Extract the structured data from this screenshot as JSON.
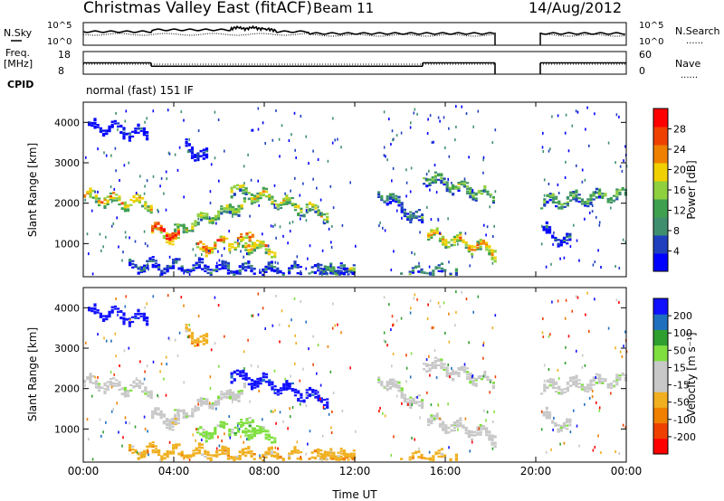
{
  "header": {
    "title": "Christmas Valley East (fitACF)",
    "beam": "Beam 11",
    "date": "14/Aug/2012"
  },
  "left_labels": {
    "nsky": "N.Sky",
    "freq_line1": "Freq.",
    "freq_line2": "[MHz]",
    "cpid": "CPID"
  },
  "right_labels": {
    "nsearch": "N.Search",
    "nave": "Nave",
    "dotted": "......"
  },
  "cpid_text": "normal (fast) 151 IF",
  "colors": {
    "power": [
      "#0000ff",
      "#1f3fbf",
      "#3f8f6f",
      "#3fa04f",
      "#8fd03f",
      "#f0d000",
      "#f08000",
      "#f04000",
      "#ff0000"
    ],
    "velocity": [
      "#1010ff",
      "#1f6fbf",
      "#2f9f2f",
      "#7fdf3f",
      "#c8c8c8",
      "#c8c8c8",
      "#f0b020",
      "#f08000",
      "#f04000",
      "#ff0000"
    ]
  },
  "chart_data": [
    {
      "type": "line",
      "name": "noise-panel",
      "left_axis": {
        "ticks": [
          "10^5",
          "10^0"
        ],
        "title": "N.Sky"
      },
      "right_axis": {
        "ticks": [
          "10^5",
          "10^0"
        ],
        "title": "N.Search"
      },
      "x": {
        "ticks": [
          "00:00",
          "04:00",
          "08:00",
          "12:00",
          "16:00",
          "20:00",
          "00:00"
        ],
        "range_hours": [
          0,
          24
        ]
      },
      "gaps_hours": [
        [
          18.2,
          20.2
        ]
      ]
    },
    {
      "type": "line",
      "name": "frequency-panel",
      "left_axis": {
        "ticks": [
          "18",
          "8"
        ],
        "title": "Freq. [MHz]"
      },
      "right_axis": {
        "ticks": [
          "60",
          "0"
        ],
        "title": "Nave"
      },
      "freq_segments_hours": [
        [
          0,
          3.0,
          13.0
        ],
        [
          3.0,
          15.0,
          11.5
        ],
        [
          15.0,
          18.2,
          13.0
        ],
        [
          20.2,
          24.0,
          13.0
        ]
      ]
    },
    {
      "type": "heatmap",
      "name": "power-panel",
      "ylabel": "Slant Range [km]",
      "yticks": [
        "4000",
        "3000",
        "2000",
        "1000"
      ],
      "yrange": [
        180,
        4500
      ],
      "x": {
        "ticks": [
          "00:00",
          "04:00",
          "08:00",
          "12:00",
          "16:00",
          "20:00",
          "00:00"
        ],
        "range_hours": [
          0,
          24
        ]
      },
      "colorbar": {
        "label": "Power [dB]",
        "ticks": [
          "28",
          "24",
          "20",
          "16",
          "12",
          "8",
          "4"
        ],
        "range": [
          0,
          30
        ]
      }
    },
    {
      "type": "heatmap",
      "name": "velocity-panel",
      "ylabel": "Slant Range [km]",
      "yticks": [
        "4000",
        "3000",
        "2000",
        "1000"
      ],
      "yrange": [
        180,
        4500
      ],
      "xlabel": "Time UT",
      "x": {
        "ticks": [
          "00:00",
          "04:00",
          "08:00",
          "12:00",
          "16:00",
          "20:00",
          "00:00"
        ],
        "range_hours": [
          0,
          24
        ]
      },
      "colorbar": {
        "label": "Velocity [m s⁻¹]",
        "ticks": [
          "200",
          "100",
          "50",
          "15",
          "-15",
          "-50",
          "-100",
          "-200"
        ],
        "range": [
          -250,
          250
        ]
      }
    }
  ]
}
